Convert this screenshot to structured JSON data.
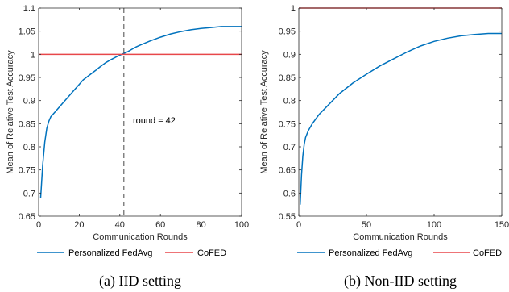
{
  "colors": {
    "fedavg": "#0072bd",
    "cofed": "#e8474a",
    "axis": "#262626",
    "vline": "#333333"
  },
  "chart_data": [
    {
      "type": "line",
      "caption": "(a) IID setting",
      "xlabel": "Communication Rounds",
      "ylabel": "Mean of Relative Test Accuracy",
      "xlim": [
        0,
        100
      ],
      "ylim": [
        0.65,
        1.1
      ],
      "xticks": [
        "0",
        "20",
        "40",
        "60",
        "80",
        "100"
      ],
      "yticks": [
        "0.65",
        "0.7",
        "0.75",
        "0.8",
        "0.85",
        "0.9",
        "0.95",
        "1",
        "1.05",
        "1.1"
      ],
      "grid": false,
      "legend": "bottom",
      "annotation": {
        "text": "round = 42",
        "x": 42
      },
      "series": [
        {
          "name": "Personalized FedAvg",
          "x": [
            1,
            2,
            3,
            4,
            5,
            6,
            8,
            10,
            12,
            15,
            18,
            20,
            22,
            25,
            28,
            30,
            33,
            35,
            38,
            40,
            42,
            44,
            46,
            48,
            50,
            55,
            60,
            65,
            70,
            75,
            80,
            85,
            90,
            95,
            100
          ],
          "y": [
            0.69,
            0.76,
            0.81,
            0.84,
            0.855,
            0.865,
            0.875,
            0.885,
            0.895,
            0.91,
            0.925,
            0.935,
            0.945,
            0.955,
            0.965,
            0.972,
            0.982,
            0.987,
            0.994,
            0.998,
            1.002,
            1.006,
            1.011,
            1.016,
            1.02,
            1.029,
            1.037,
            1.044,
            1.049,
            1.053,
            1.056,
            1.058,
            1.06,
            1.06,
            1.06
          ]
        },
        {
          "name": "CoFED",
          "x": [
            0,
            100
          ],
          "y": [
            1.0,
            1.0
          ]
        }
      ]
    },
    {
      "type": "line",
      "caption": "(b) Non-IID setting",
      "xlabel": "Communication Rounds",
      "ylabel": "Mean of Relative Test Accuracy",
      "xlim": [
        0,
        150
      ],
      "ylim": [
        0.55,
        1.0
      ],
      "xticks": [
        "0",
        "50",
        "100",
        "150"
      ],
      "yticks": [
        "0.55",
        "0.6",
        "0.65",
        "0.7",
        "0.75",
        "0.8",
        "0.85",
        "0.9",
        "0.95",
        "1"
      ],
      "grid": false,
      "legend": "bottom",
      "series": [
        {
          "name": "Personalized FedAvg",
          "x": [
            1,
            2,
            3,
            4,
            5,
            7,
            10,
            15,
            20,
            25,
            30,
            40,
            50,
            60,
            70,
            80,
            90,
            100,
            110,
            120,
            130,
            140,
            150
          ],
          "y": [
            0.575,
            0.64,
            0.68,
            0.705,
            0.72,
            0.735,
            0.75,
            0.77,
            0.785,
            0.8,
            0.815,
            0.838,
            0.857,
            0.875,
            0.89,
            0.905,
            0.918,
            0.928,
            0.935,
            0.94,
            0.943,
            0.945,
            0.945
          ]
        },
        {
          "name": "CoFED",
          "x": [
            0,
            150
          ],
          "y": [
            1.0,
            1.0
          ]
        }
      ]
    }
  ]
}
